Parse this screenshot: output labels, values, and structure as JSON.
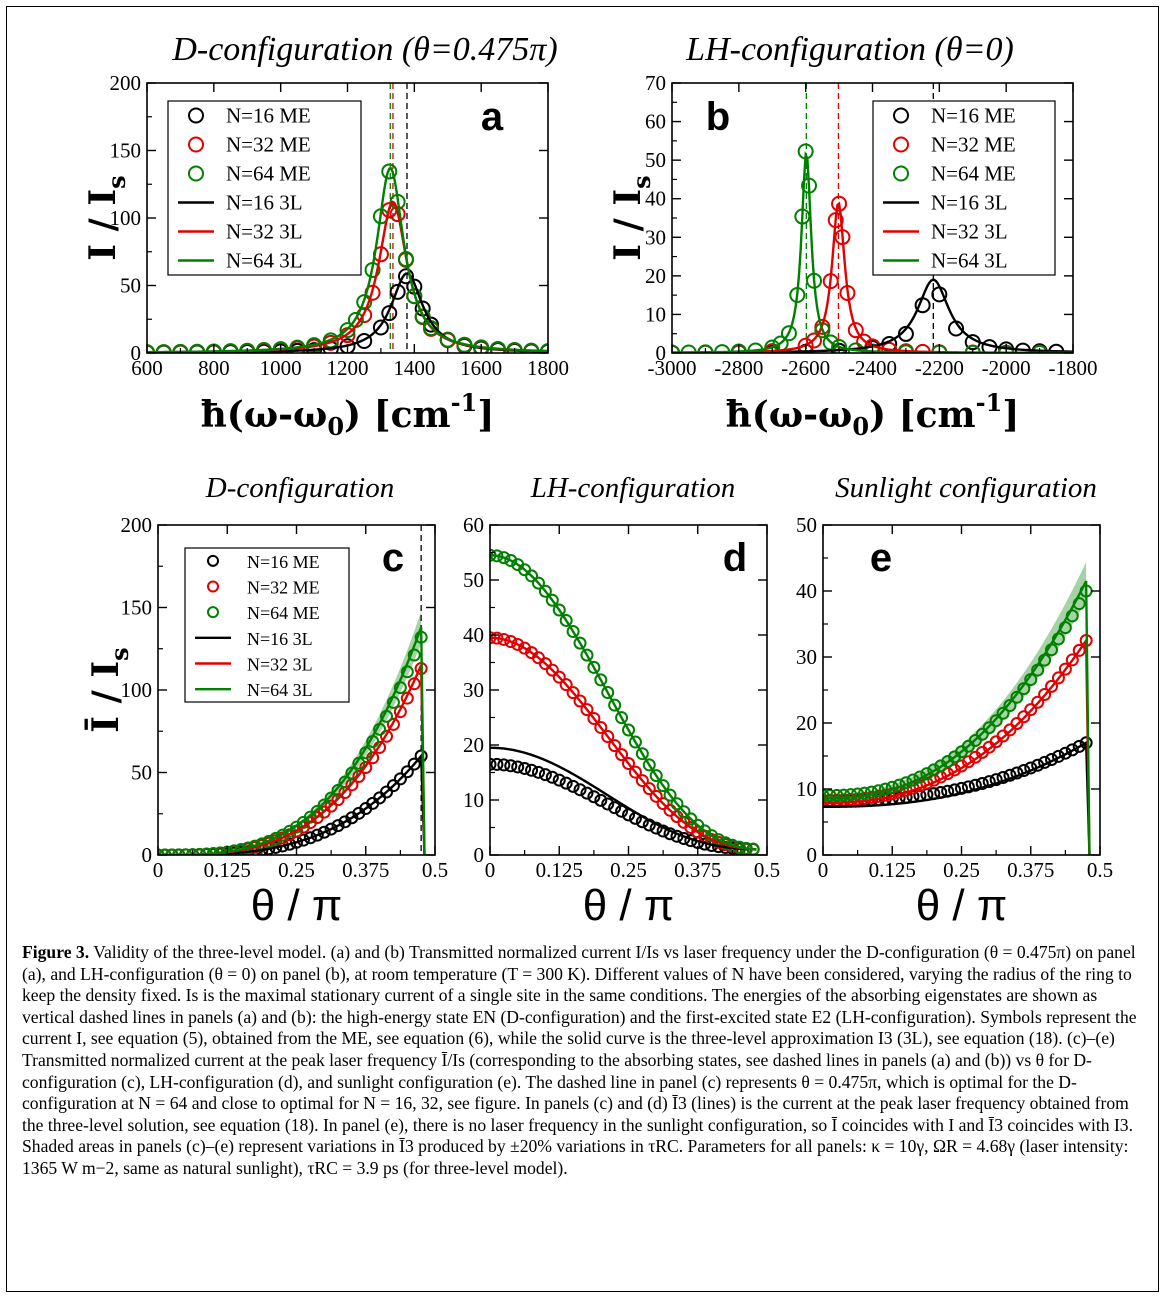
{
  "chart_data": [
    {
      "id": "a",
      "type": "line",
      "title": "D-configuration (θ=0.475π)",
      "panel_label": "a",
      "xlabel": "ħ(ω-ω0) [cm-1]",
      "ylabel": "I / Is",
      "xlim": [
        600,
        1800
      ],
      "ylim": [
        0,
        200
      ],
      "xticks": [
        600,
        800,
        1000,
        1200,
        1400,
        1600,
        1800
      ],
      "yticks": [
        0,
        50,
        100,
        150,
        200
      ],
      "legend_position": "top-left",
      "vlines": [
        {
          "x": 1328,
          "color": "#008000"
        },
        {
          "x": 1336,
          "color": "#e00000"
        },
        {
          "x": 1378,
          "color": "#000000"
        }
      ],
      "series": [
        {
          "name": "N=16 ME",
          "style": "markers",
          "color": "#000000",
          "model": "lorentz",
          "center": 1378,
          "width": 110,
          "peak": 57,
          "base": 0,
          "xs": [
            600,
            650,
            700,
            750,
            800,
            850,
            900,
            950,
            1000,
            1050,
            1100,
            1150,
            1200,
            1250,
            1300,
            1325,
            1350,
            1375,
            1400,
            1425,
            1450,
            1500,
            1550,
            1600,
            1650,
            1700,
            1750,
            1800
          ]
        },
        {
          "name": "N=32 ME",
          "style": "markers",
          "color": "#e00000",
          "model": "lorentz",
          "center": 1336,
          "width": 100,
          "peak": 111,
          "base": 0,
          "xs": [
            600,
            650,
            700,
            750,
            800,
            850,
            900,
            950,
            1000,
            1050,
            1100,
            1150,
            1200,
            1250,
            1275,
            1300,
            1325,
            1350,
            1375,
            1400,
            1425,
            1450,
            1500,
            1550,
            1600,
            1650,
            1700,
            1750,
            1800
          ]
        },
        {
          "name": "N=64 ME",
          "style": "markers",
          "color": "#008000",
          "model": "lorentz",
          "center": 1328,
          "width": 97,
          "peak": 135,
          "base": 0,
          "xs": [
            600,
            650,
            700,
            750,
            800,
            850,
            900,
            950,
            1000,
            1050,
            1100,
            1150,
            1200,
            1225,
            1250,
            1275,
            1300,
            1325,
            1350,
            1375,
            1400,
            1425,
            1450,
            1500,
            1550,
            1600,
            1650,
            1700,
            1750,
            1800
          ]
        },
        {
          "name": "N=16 3L",
          "style": "line",
          "color": "#000000",
          "model": "lorentz",
          "center": 1378,
          "width": 115,
          "peak": 59,
          "base": 0
        },
        {
          "name": "N=32 3L",
          "style": "line",
          "color": "#e00000",
          "model": "lorentz",
          "center": 1336,
          "width": 103,
          "peak": 112,
          "base": 0
        },
        {
          "name": "N=64 3L",
          "style": "line",
          "color": "#008000",
          "model": "lorentz",
          "center": 1328,
          "width": 99,
          "peak": 137,
          "base": 0
        }
      ]
    },
    {
      "id": "b",
      "type": "line",
      "title": "LH-configuration (θ=0)",
      "panel_label": "b",
      "xlabel": "ħ(ω-ω0) [cm-1]",
      "ylabel": "I / Is",
      "xlim": [
        -3000,
        -1800
      ],
      "ylim": [
        0,
        70
      ],
      "xticks": [
        -3000,
        -2800,
        -2600,
        -2400,
        -2200,
        -2000,
        -1800
      ],
      "yticks": [
        0,
        10,
        20,
        30,
        40,
        50,
        60,
        70
      ],
      "legend_position": "top-right",
      "vlines": [
        {
          "x": -2598,
          "color": "#008000"
        },
        {
          "x": -2502,
          "color": "#e00000"
        },
        {
          "x": -2218,
          "color": "#000000"
        }
      ],
      "series": [
        {
          "name": "N=16 ME",
          "style": "markers",
          "color": "#000000",
          "model": "lorentz",
          "center": -2218,
          "width": 105,
          "peak": 17,
          "base": 0,
          "xs": [
            -3000,
            -2900,
            -2800,
            -2700,
            -2600,
            -2500,
            -2400,
            -2350,
            -2300,
            -2250,
            -2200,
            -2150,
            -2100,
            -2050,
            -2000,
            -1950,
            -1900,
            -1850
          ]
        },
        {
          "name": "N=32 ME",
          "style": "markers",
          "color": "#e00000",
          "model": "lorentz",
          "center": -2502,
          "width": 44,
          "peak": 39,
          "base": 0,
          "xs": [
            -3000,
            -2900,
            -2800,
            -2700,
            -2600,
            -2575,
            -2550,
            -2525,
            -2510,
            -2500,
            -2490,
            -2475,
            -2450,
            -2425,
            -2400,
            -2350,
            -2300,
            -2250,
            -2200,
            -2100,
            -2000,
            -1900
          ]
        },
        {
          "name": "N=64 ME",
          "style": "markers",
          "color": "#008000",
          "model": "lorentz",
          "center": -2598,
          "width": 34,
          "peak": 53,
          "base": 0,
          "xs": [
            -3000,
            -2950,
            -2900,
            -2850,
            -2800,
            -2750,
            -2700,
            -2675,
            -2650,
            -2625,
            -2610,
            -2600,
            -2590,
            -2575,
            -2550,
            -2525,
            -2500,
            -2450,
            -2400,
            -2300,
            -2200,
            -2100,
            -2000,
            -1900
          ]
        },
        {
          "name": "N=16 3L",
          "style": "line",
          "color": "#000000",
          "model": "lorentz",
          "center": -2218,
          "width": 115,
          "peak": 19,
          "base": 0
        },
        {
          "name": "N=32 3L",
          "style": "line",
          "color": "#e00000",
          "model": "lorentz",
          "center": -2502,
          "width": 46,
          "peak": 39,
          "base": 0
        },
        {
          "name": "N=64 3L",
          "style": "line",
          "color": "#008000",
          "model": "lorentz",
          "center": -2598,
          "width": 35,
          "peak": 52,
          "base": 0
        }
      ]
    },
    {
      "id": "c",
      "type": "line",
      "title": "D-configuration",
      "panel_label": "c",
      "xlabel": "θ / π",
      "ylabel": "Ī / Is",
      "xlim": [
        0,
        0.5
      ],
      "ylim": [
        0,
        200
      ],
      "xticks": [
        0,
        0.125,
        0.25,
        0.375,
        0.5
      ],
      "yticks": [
        0,
        50,
        100,
        150,
        200
      ],
      "legend_position": "top-left",
      "vlines": [
        {
          "x": 0.475,
          "color": "#000000"
        }
      ],
      "series": [
        {
          "name": "N=16 ME",
          "style": "markers",
          "color": "#000000",
          "model": "rise",
          "amp": 60,
          "end": 15
        },
        {
          "name": "N=32 ME",
          "style": "markers",
          "color": "#e00000",
          "model": "rise",
          "amp": 113
        },
        {
          "name": "N=64 ME",
          "style": "markers",
          "color": "#008000",
          "model": "rise",
          "amp": 132,
          "end": 0
        },
        {
          "name": "N=16 3L",
          "style": "line",
          "color": "#000000",
          "model": "rise",
          "amp": 60
        },
        {
          "name": "N=32 3L",
          "style": "line",
          "color": "#e00000",
          "model": "rise",
          "amp": 115
        },
        {
          "name": "N=64 3L",
          "style": "line",
          "color": "#008000",
          "model": "rise",
          "amp": 138,
          "band": [
            0.93,
            1.07
          ]
        }
      ]
    },
    {
      "id": "d",
      "type": "line",
      "title": "LH-configuration",
      "panel_label": "d",
      "xlabel": "θ / π",
      "ylabel": "",
      "xlim": [
        0,
        0.5
      ],
      "ylim": [
        0,
        60
      ],
      "xticks": [
        0,
        0.125,
        0.25,
        0.375,
        0.5
      ],
      "yticks": [
        0,
        10,
        20,
        30,
        40,
        50,
        60
      ],
      "series": [
        {
          "name": "N=16 ME",
          "style": "markers",
          "color": "#000000",
          "model": "fall",
          "amp": 16.5,
          "floor": 1
        },
        {
          "name": "N=32 ME",
          "style": "markers",
          "color": "#e00000",
          "model": "fall",
          "amp": 39.5,
          "floor": 1
        },
        {
          "name": "N=64 ME",
          "style": "markers",
          "color": "#008000",
          "model": "fall",
          "amp": 54.5,
          "floor": 1
        },
        {
          "name": "N=16 3L",
          "style": "line",
          "color": "#000000",
          "model": "fall",
          "amp": 19.5,
          "floor": 1
        },
        {
          "name": "N=32 3L",
          "style": "line",
          "color": "#e00000",
          "model": "fall",
          "amp": 39.5,
          "floor": 1
        },
        {
          "name": "N=64 3L",
          "style": "line",
          "color": "#008000",
          "model": "fall",
          "amp": 54.5,
          "floor": 1
        }
      ]
    },
    {
      "id": "e",
      "type": "line",
      "title": "Sunlight configuration",
      "panel_label": "e",
      "xlabel": "θ / π",
      "ylabel": "",
      "xlim": [
        0,
        0.5
      ],
      "ylim": [
        0,
        50
      ],
      "xticks": [
        0,
        0.125,
        0.25,
        0.375,
        0.5
      ],
      "yticks": [
        0,
        10,
        20,
        30,
        40,
        50
      ],
      "series": [
        {
          "name": "N=16 ME",
          "style": "markers",
          "color": "#000000",
          "model": "sun",
          "start": 8.2,
          "amp": 17,
          "end": 13.8
        },
        {
          "name": "N=32 ME",
          "style": "markers",
          "color": "#e00000",
          "model": "sun",
          "start": 8.3,
          "amp": 32.5,
          "end": 2.5
        },
        {
          "name": "N=64 ME",
          "style": "markers",
          "color": "#008000",
          "model": "sun",
          "start": 9,
          "amp": 40,
          "end": 1
        },
        {
          "name": "N=16 3L",
          "style": "line",
          "color": "#000000",
          "model": "sun",
          "start": 7.3,
          "amp": 17
        },
        {
          "name": "N=32 3L",
          "style": "line",
          "color": "#e00000",
          "model": "sun",
          "start": 7.9,
          "amp": 32.5
        },
        {
          "name": "N=64 3L",
          "style": "line",
          "color": "#008000",
          "model": "sun",
          "start": 8.6,
          "amp": 41.5,
          "band": [
            0.93,
            1.07
          ]
        }
      ]
    }
  ],
  "caption": {
    "figure_label": "Figure 3.",
    "text": " Validity of the three-level model. (a) and (b) Transmitted normalized current I/Is vs laser frequency under the D-configuration (θ = 0.475π) on panel (a), and LH-configuration (θ = 0) on panel (b), at room temperature (T = 300 K). Different values of N have been considered, varying the radius of the ring to keep the density fixed. Is is the maximal stationary current of a single site in the same conditions. The energies of the absorbing eigenstates are shown as vertical dashed lines in panels (a) and (b): the high-energy state EN (D-configuration) and the first-excited state E2 (LH-configuration). Symbols represent the current I, see equation (5), obtained from the ME, see equation (6), while the solid curve is the three-level approximation I3 (3L), see equation (18). (c)–(e) Transmitted normalized current at the peak laser frequency Ī/Is (corresponding to the absorbing states, see dashed lines in panels (a) and (b)) vs θ for D-configuration (c), LH-configuration (d), and sunlight configuration (e). The dashed line in panel (c) represents θ = 0.475π, which is optimal for the D-configuration at N = 64 and close to optimal for N = 16, 32, see figure. In panels (c) and (d) Ī3 (lines) is the current at the peak laser frequency obtained from the three-level solution, see equation (18). In panel (e), there is no laser frequency in the sunlight configuration, so Ī coincides with I and Ī3 coincides with I3. Shaded areas in panels (c)–(e) represent variations in Ī3 produced by ±20% variations in τRC. Parameters for all panels: κ = 10γ, ΩR = 4.68γ (laser intensity: 1365 W m−2, same as natural sunlight), τRC = 3.9 ps (for three-level model)."
  }
}
